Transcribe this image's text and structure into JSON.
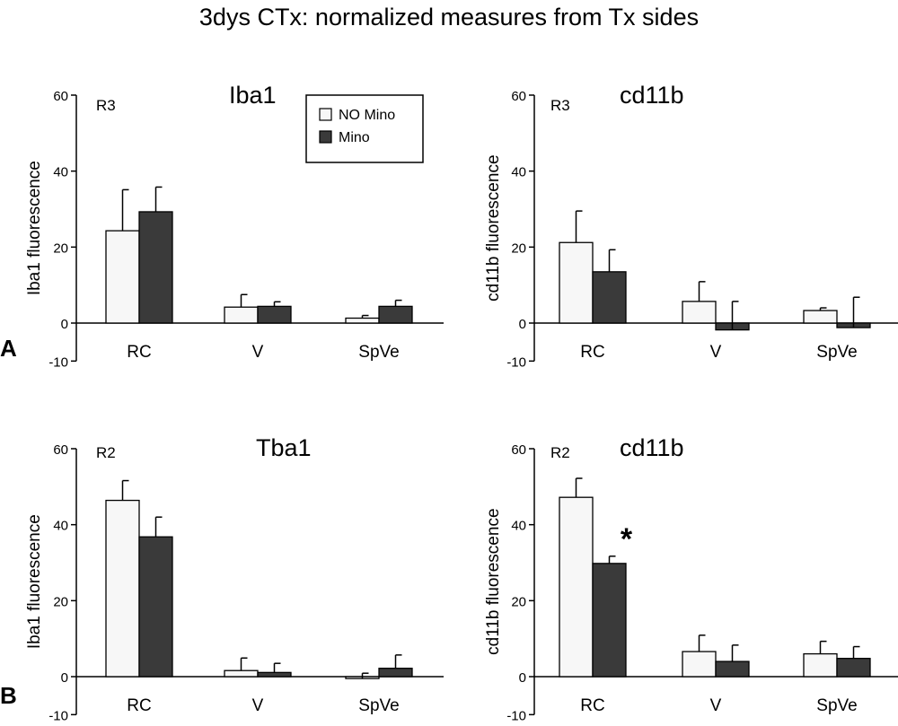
{
  "figure": {
    "title": "3dys CTx: normalized measures from Tx sides",
    "row_labels": [
      "A",
      "B"
    ]
  },
  "legend": {
    "entries": [
      {
        "name": "NO Mino",
        "color": "#f7f7f7"
      },
      {
        "name": "Mino",
        "color": "#3a3a3a"
      }
    ]
  },
  "colors": {
    "no_mino": "#f7f7f7",
    "mino": "#3a3a3a",
    "axis": "#000000"
  },
  "chart_data": [
    {
      "type": "bar",
      "title": "Iba1",
      "region": "R3",
      "ylabel": "Iba1 fluorescence",
      "categories": [
        "RC",
        "V",
        "SpVe"
      ],
      "yticks": [
        -10,
        0,
        20,
        40,
        60
      ],
      "ylim": [
        -10,
        60
      ],
      "series": [
        {
          "name": "NO Mino",
          "values": [
            24.3,
            4.2,
            1.3
          ],
          "errors": [
            10.8,
            3.3,
            0.7
          ]
        },
        {
          "name": "Mino",
          "values": [
            29.3,
            4.4,
            4.4
          ],
          "errors": [
            6.5,
            1.2,
            1.6
          ]
        }
      ],
      "significance": []
    },
    {
      "type": "bar",
      "title": "cd11b",
      "region": "R3",
      "ylabel": "cd11b  fluorescence",
      "categories": [
        "RC",
        "V",
        "SpVe"
      ],
      "yticks": [
        -10,
        0,
        20,
        40,
        60
      ],
      "ylim": [
        -10,
        60
      ],
      "series": [
        {
          "name": "NO Mino",
          "values": [
            21.2,
            5.7,
            3.3
          ],
          "errors": [
            8.3,
            5.2,
            0.7
          ]
        },
        {
          "name": "Mino",
          "values": [
            13.5,
            -1.8,
            -1.2
          ],
          "errors": [
            5.8,
            7.5,
            8.0
          ]
        }
      ],
      "significance": []
    },
    {
      "type": "bar",
      "title": "Tba1",
      "region": "R2",
      "ylabel": "Iba1 fluorescence",
      "categories": [
        "RC",
        "V",
        "SpVe"
      ],
      "yticks": [
        -10,
        0,
        20,
        40,
        60
      ],
      "ylim": [
        -10,
        60
      ],
      "series": [
        {
          "name": "NO Mino",
          "values": [
            46.4,
            1.6,
            -0.5
          ],
          "errors": [
            5.2,
            3.3,
            1.4
          ]
        },
        {
          "name": "Mino",
          "values": [
            36.8,
            1.1,
            2.2
          ],
          "errors": [
            5.2,
            2.4,
            3.5
          ]
        }
      ],
      "significance": []
    },
    {
      "type": "bar",
      "title": "cd11b",
      "region": "R2",
      "ylabel": "cd11b  fluorescence",
      "categories": [
        "RC",
        "V",
        "SpVe"
      ],
      "yticks": [
        -10,
        0,
        20,
        40,
        60
      ],
      "ylim": [
        -10,
        60
      ],
      "series": [
        {
          "name": "NO Mino",
          "values": [
            47.2,
            6.6,
            6.0
          ],
          "errors": [
            5.0,
            4.3,
            3.3
          ]
        },
        {
          "name": "Mino",
          "values": [
            29.8,
            4.0,
            4.8
          ],
          "errors": [
            1.9,
            4.3,
            3.1
          ]
        }
      ],
      "significance": [
        {
          "category": "RC",
          "series": "Mino",
          "symbol": "*"
        }
      ]
    }
  ]
}
